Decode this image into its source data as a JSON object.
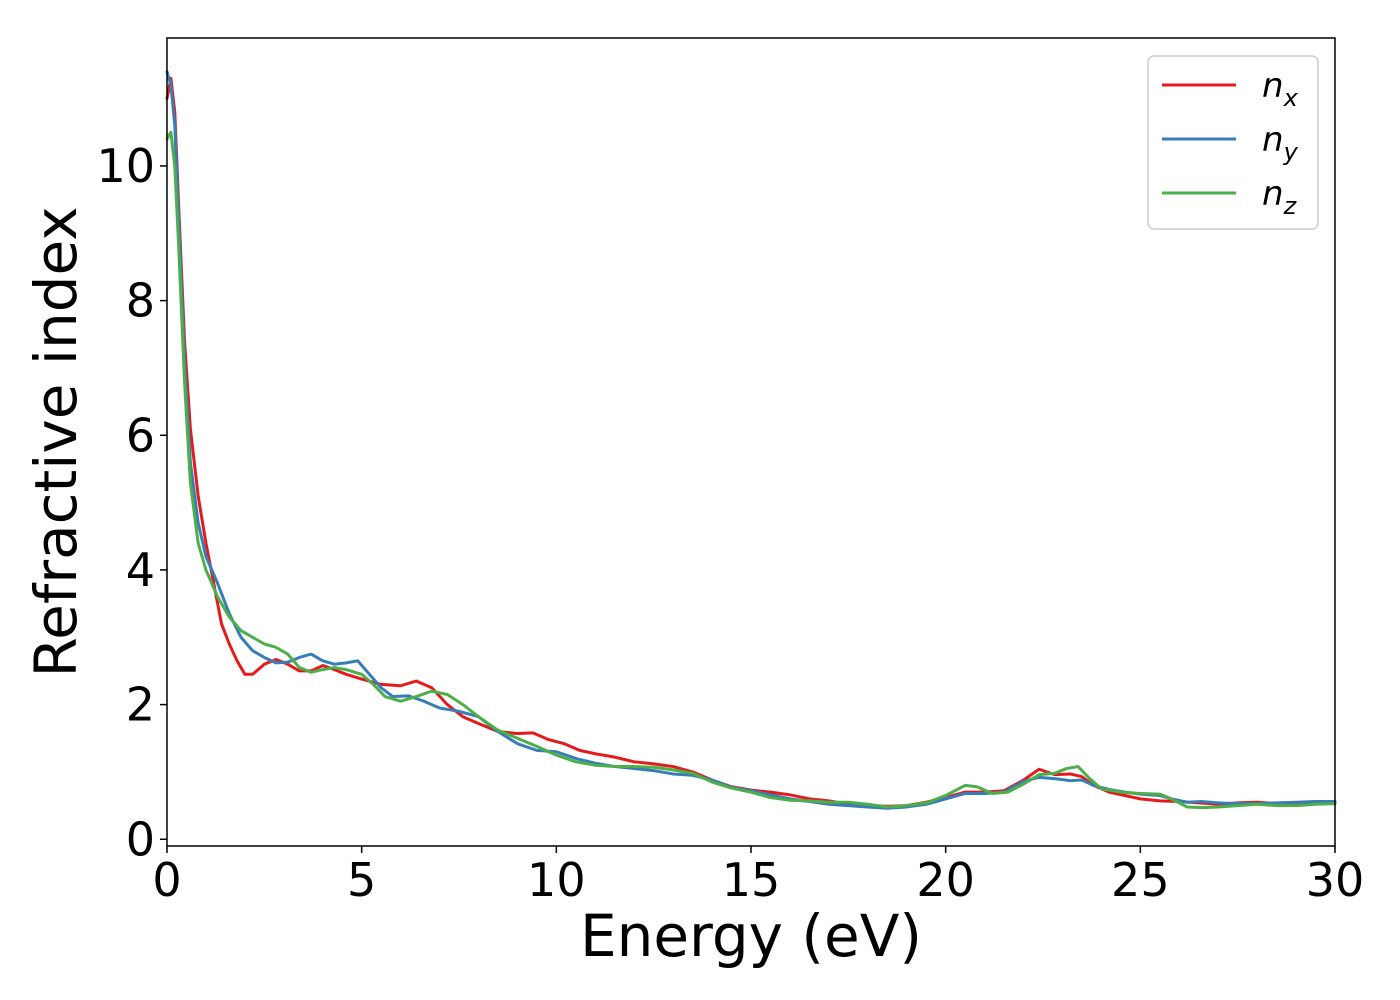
{
  "chart_data": {
    "type": "line",
    "title": "",
    "xlabel": "Energy (eV)",
    "ylabel": "Refractive index",
    "xlim": [
      0,
      30
    ],
    "ylim": [
      -0.1,
      11.9
    ],
    "xticks": [
      0,
      5,
      10,
      15,
      20,
      25,
      30
    ],
    "yticks": [
      0,
      2,
      4,
      6,
      8,
      10
    ],
    "grid": false,
    "legend_position": "top-right",
    "series": [
      {
        "name": "n",
        "subscript": "x",
        "color": "#e41a1c",
        "points": [
          [
            0,
            11.0
          ],
          [
            0.1,
            11.3
          ],
          [
            0.2,
            10.8
          ],
          [
            0.3,
            9.4
          ],
          [
            0.45,
            7.4
          ],
          [
            0.6,
            6.1
          ],
          [
            0.8,
            5.1
          ],
          [
            1.0,
            4.4
          ],
          [
            1.2,
            3.8
          ],
          [
            1.4,
            3.2
          ],
          [
            1.6,
            2.9
          ],
          [
            1.8,
            2.65
          ],
          [
            2.0,
            2.45
          ],
          [
            2.2,
            2.45
          ],
          [
            2.5,
            2.6
          ],
          [
            2.8,
            2.67
          ],
          [
            3.1,
            2.6
          ],
          [
            3.4,
            2.5
          ],
          [
            3.7,
            2.5
          ],
          [
            4.0,
            2.58
          ],
          [
            4.3,
            2.52
          ],
          [
            4.6,
            2.45
          ],
          [
            5.0,
            2.38
          ],
          [
            5.5,
            2.3
          ],
          [
            6.0,
            2.28
          ],
          [
            6.4,
            2.35
          ],
          [
            6.8,
            2.25
          ],
          [
            7.2,
            2.0
          ],
          [
            7.6,
            1.82
          ],
          [
            8.0,
            1.72
          ],
          [
            8.5,
            1.6
          ],
          [
            9.0,
            1.57
          ],
          [
            9.4,
            1.58
          ],
          [
            9.8,
            1.48
          ],
          [
            10.2,
            1.42
          ],
          [
            10.6,
            1.32
          ],
          [
            11.0,
            1.27
          ],
          [
            11.5,
            1.22
          ],
          [
            12.0,
            1.15
          ],
          [
            12.5,
            1.12
          ],
          [
            13.0,
            1.08
          ],
          [
            13.5,
            1.0
          ],
          [
            14.0,
            0.88
          ],
          [
            14.5,
            0.78
          ],
          [
            15.0,
            0.73
          ],
          [
            15.5,
            0.7
          ],
          [
            16.0,
            0.66
          ],
          [
            16.5,
            0.6
          ],
          [
            17.0,
            0.57
          ],
          [
            17.5,
            0.52
          ],
          [
            18.0,
            0.5
          ],
          [
            18.5,
            0.49
          ],
          [
            19.0,
            0.5
          ],
          [
            19.5,
            0.55
          ],
          [
            20.0,
            0.62
          ],
          [
            20.5,
            0.7
          ],
          [
            21.0,
            0.7
          ],
          [
            21.5,
            0.72
          ],
          [
            22.0,
            0.88
          ],
          [
            22.4,
            1.04
          ],
          [
            22.8,
            0.96
          ],
          [
            23.2,
            0.97
          ],
          [
            23.5,
            0.93
          ],
          [
            23.8,
            0.8
          ],
          [
            24.2,
            0.7
          ],
          [
            24.6,
            0.65
          ],
          [
            25.0,
            0.6
          ],
          [
            25.5,
            0.57
          ],
          [
            26.0,
            0.56
          ],
          [
            26.5,
            0.54
          ],
          [
            27.0,
            0.52
          ],
          [
            27.5,
            0.54
          ],
          [
            28.0,
            0.55
          ],
          [
            28.5,
            0.53
          ],
          [
            29.0,
            0.54
          ],
          [
            29.5,
            0.55
          ],
          [
            30.0,
            0.55
          ]
        ]
      },
      {
        "name": "n",
        "subscript": "y",
        "color": "#377eb8",
        "points": [
          [
            0,
            11.4
          ],
          [
            0.1,
            11.2
          ],
          [
            0.2,
            10.6
          ],
          [
            0.3,
            9.2
          ],
          [
            0.45,
            7.1
          ],
          [
            0.6,
            5.6
          ],
          [
            0.8,
            4.7
          ],
          [
            1.0,
            4.2
          ],
          [
            1.3,
            3.8
          ],
          [
            1.6,
            3.35
          ],
          [
            1.9,
            3.0
          ],
          [
            2.2,
            2.8
          ],
          [
            2.5,
            2.7
          ],
          [
            2.8,
            2.62
          ],
          [
            3.1,
            2.63
          ],
          [
            3.4,
            2.7
          ],
          [
            3.7,
            2.75
          ],
          [
            4.0,
            2.65
          ],
          [
            4.3,
            2.6
          ],
          [
            4.6,
            2.62
          ],
          [
            4.9,
            2.65
          ],
          [
            5.2,
            2.45
          ],
          [
            5.5,
            2.25
          ],
          [
            5.8,
            2.12
          ],
          [
            6.2,
            2.13
          ],
          [
            6.6,
            2.05
          ],
          [
            7.0,
            1.95
          ],
          [
            7.5,
            1.9
          ],
          [
            8.0,
            1.82
          ],
          [
            8.5,
            1.6
          ],
          [
            9.0,
            1.42
          ],
          [
            9.5,
            1.32
          ],
          [
            10.0,
            1.3
          ],
          [
            10.5,
            1.2
          ],
          [
            11.0,
            1.13
          ],
          [
            11.5,
            1.08
          ],
          [
            12.0,
            1.05
          ],
          [
            12.5,
            1.02
          ],
          [
            13.0,
            0.97
          ],
          [
            13.5,
            0.95
          ],
          [
            14.0,
            0.88
          ],
          [
            14.5,
            0.77
          ],
          [
            15.0,
            0.72
          ],
          [
            15.5,
            0.66
          ],
          [
            16.0,
            0.6
          ],
          [
            16.5,
            0.56
          ],
          [
            17.0,
            0.52
          ],
          [
            17.5,
            0.5
          ],
          [
            18.0,
            0.48
          ],
          [
            18.5,
            0.46
          ],
          [
            19.0,
            0.48
          ],
          [
            19.5,
            0.52
          ],
          [
            20.0,
            0.6
          ],
          [
            20.5,
            0.68
          ],
          [
            21.0,
            0.68
          ],
          [
            21.5,
            0.7
          ],
          [
            22.0,
            0.86
          ],
          [
            22.4,
            0.92
          ],
          [
            22.8,
            0.9
          ],
          [
            23.2,
            0.87
          ],
          [
            23.5,
            0.88
          ],
          [
            23.8,
            0.8
          ],
          [
            24.2,
            0.74
          ],
          [
            24.6,
            0.7
          ],
          [
            25.0,
            0.67
          ],
          [
            25.5,
            0.65
          ],
          [
            25.8,
            0.6
          ],
          [
            26.2,
            0.55
          ],
          [
            26.6,
            0.56
          ],
          [
            27.0,
            0.54
          ],
          [
            27.5,
            0.53
          ],
          [
            28.0,
            0.53
          ],
          [
            28.5,
            0.54
          ],
          [
            29.0,
            0.55
          ],
          [
            29.5,
            0.56
          ],
          [
            30.0,
            0.56
          ]
        ]
      },
      {
        "name": "n",
        "subscript": "z",
        "color": "#4daf4a",
        "points": [
          [
            0,
            10.4
          ],
          [
            0.1,
            10.5
          ],
          [
            0.2,
            10.0
          ],
          [
            0.3,
            8.8
          ],
          [
            0.45,
            6.8
          ],
          [
            0.6,
            5.3
          ],
          [
            0.8,
            4.4
          ],
          [
            1.0,
            4.0
          ],
          [
            1.3,
            3.6
          ],
          [
            1.6,
            3.3
          ],
          [
            1.9,
            3.1
          ],
          [
            2.2,
            3.0
          ],
          [
            2.5,
            2.9
          ],
          [
            2.8,
            2.85
          ],
          [
            3.1,
            2.75
          ],
          [
            3.4,
            2.55
          ],
          [
            3.7,
            2.48
          ],
          [
            4.0,
            2.52
          ],
          [
            4.3,
            2.55
          ],
          [
            4.6,
            2.52
          ],
          [
            5.0,
            2.45
          ],
          [
            5.3,
            2.3
          ],
          [
            5.6,
            2.12
          ],
          [
            6.0,
            2.05
          ],
          [
            6.4,
            2.12
          ],
          [
            6.8,
            2.2
          ],
          [
            7.2,
            2.15
          ],
          [
            7.6,
            2.0
          ],
          [
            8.0,
            1.82
          ],
          [
            8.5,
            1.62
          ],
          [
            9.0,
            1.5
          ],
          [
            9.5,
            1.38
          ],
          [
            10.0,
            1.25
          ],
          [
            10.5,
            1.15
          ],
          [
            11.0,
            1.1
          ],
          [
            11.5,
            1.08
          ],
          [
            12.0,
            1.08
          ],
          [
            12.5,
            1.07
          ],
          [
            13.0,
            1.03
          ],
          [
            13.5,
            0.98
          ],
          [
            14.0,
            0.85
          ],
          [
            14.5,
            0.76
          ],
          [
            15.0,
            0.7
          ],
          [
            15.5,
            0.62
          ],
          [
            16.0,
            0.58
          ],
          [
            16.5,
            0.57
          ],
          [
            17.0,
            0.55
          ],
          [
            17.5,
            0.55
          ],
          [
            18.0,
            0.52
          ],
          [
            18.5,
            0.48
          ],
          [
            19.0,
            0.5
          ],
          [
            19.5,
            0.54
          ],
          [
            20.0,
            0.65
          ],
          [
            20.5,
            0.8
          ],
          [
            20.8,
            0.78
          ],
          [
            21.2,
            0.68
          ],
          [
            21.6,
            0.7
          ],
          [
            22.0,
            0.82
          ],
          [
            22.4,
            0.96
          ],
          [
            22.8,
            0.98
          ],
          [
            23.1,
            1.05
          ],
          [
            23.4,
            1.08
          ],
          [
            23.7,
            0.9
          ],
          [
            24.0,
            0.75
          ],
          [
            24.5,
            0.7
          ],
          [
            25.0,
            0.68
          ],
          [
            25.5,
            0.67
          ],
          [
            25.8,
            0.6
          ],
          [
            26.2,
            0.48
          ],
          [
            26.6,
            0.47
          ],
          [
            27.0,
            0.48
          ],
          [
            27.5,
            0.5
          ],
          [
            28.0,
            0.52
          ],
          [
            28.5,
            0.5
          ],
          [
            29.0,
            0.5
          ],
          [
            29.5,
            0.52
          ],
          [
            30.0,
            0.53
          ]
        ]
      }
    ]
  }
}
